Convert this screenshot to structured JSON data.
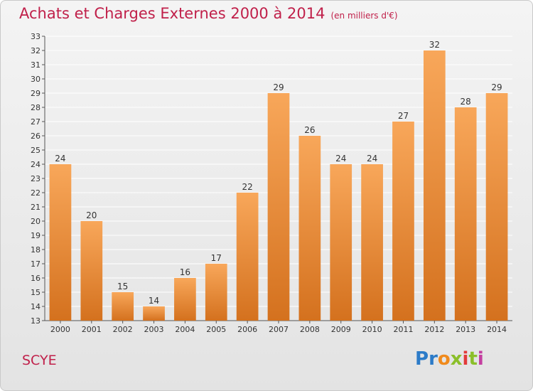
{
  "title": "Achats et Charges Externes 2000 à 2014",
  "subtitle": "(en milliers d'€)",
  "commune": "SCYE",
  "logo": {
    "text": "Proxiti",
    "letters": [
      "P",
      "r",
      "o",
      "x",
      "i",
      "t",
      "i"
    ],
    "colors": [
      "#2c7bc8",
      "#2c7bc8",
      "#f08a1c",
      "#8bbf2a",
      "#e23a3a",
      "#8bbf2a",
      "#c43ea0"
    ]
  },
  "colors": {
    "accent": "#c0204a",
    "bar_light": "#f8a75a",
    "bar_dark": "#d4711e",
    "grid": "#ffffff",
    "axis_text": "#333333"
  },
  "chart_data": {
    "type": "bar",
    "categories": [
      "2000",
      "2001",
      "2002",
      "2003",
      "2004",
      "2005",
      "2006",
      "2007",
      "2008",
      "2009",
      "2010",
      "2011",
      "2012",
      "2013",
      "2014"
    ],
    "values": [
      24,
      20,
      15,
      14,
      16,
      17,
      22,
      29,
      26,
      24,
      24,
      27,
      32,
      28,
      29
    ],
    "ylim": [
      13,
      33
    ],
    "yticks": [
      13,
      14,
      15,
      16,
      17,
      18,
      19,
      20,
      21,
      22,
      23,
      24,
      25,
      26,
      27,
      28,
      29,
      30,
      31,
      32,
      33
    ],
    "grid": true,
    "legend": "none"
  }
}
